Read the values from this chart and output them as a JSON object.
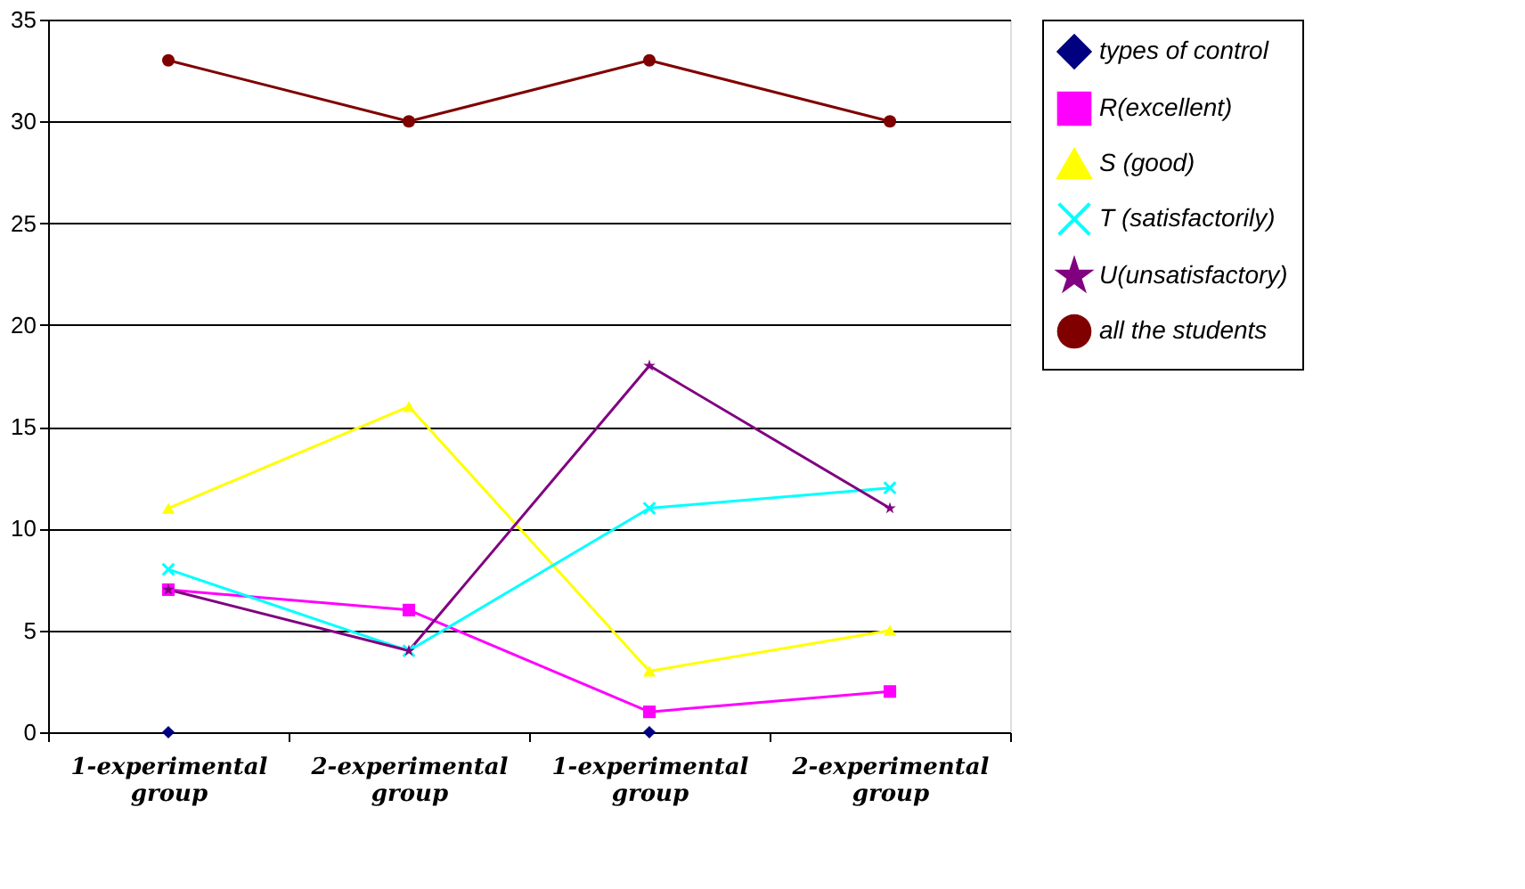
{
  "chart_data": {
    "type": "line",
    "categories": [
      "1-experimental group",
      "2-experimental group",
      "1-experimental group",
      "2-experimental group"
    ],
    "series": [
      {
        "name": "types of control",
        "type": "scatter",
        "color": "#000080",
        "marker": "diamond",
        "values": [
          0,
          null,
          0,
          null
        ]
      },
      {
        "name": "R(excellent)",
        "color": "#ff00ff",
        "marker": "square",
        "values": [
          7,
          6,
          1,
          2
        ]
      },
      {
        "name": "S (good)",
        "color": "#ffff00",
        "marker": "triangle",
        "values": [
          11,
          16,
          3,
          5
        ]
      },
      {
        "name": "T (satisfactorily)",
        "color": "#00ffff",
        "marker": "cross",
        "values": [
          8,
          4,
          11,
          12
        ]
      },
      {
        "name": "U(unsatisfactory)",
        "color": "#800080",
        "marker": "star",
        "values": [
          7,
          4,
          18,
          11
        ]
      },
      {
        "name": "all the students",
        "color": "#800000",
        "marker": "circle",
        "values": [
          33,
          30,
          33,
          30
        ]
      }
    ],
    "ylim": [
      0,
      35
    ],
    "yticks": [
      0,
      5,
      10,
      15,
      20,
      25,
      30,
      35
    ],
    "grid": "y",
    "legend": "right",
    "line_style": "solid"
  }
}
